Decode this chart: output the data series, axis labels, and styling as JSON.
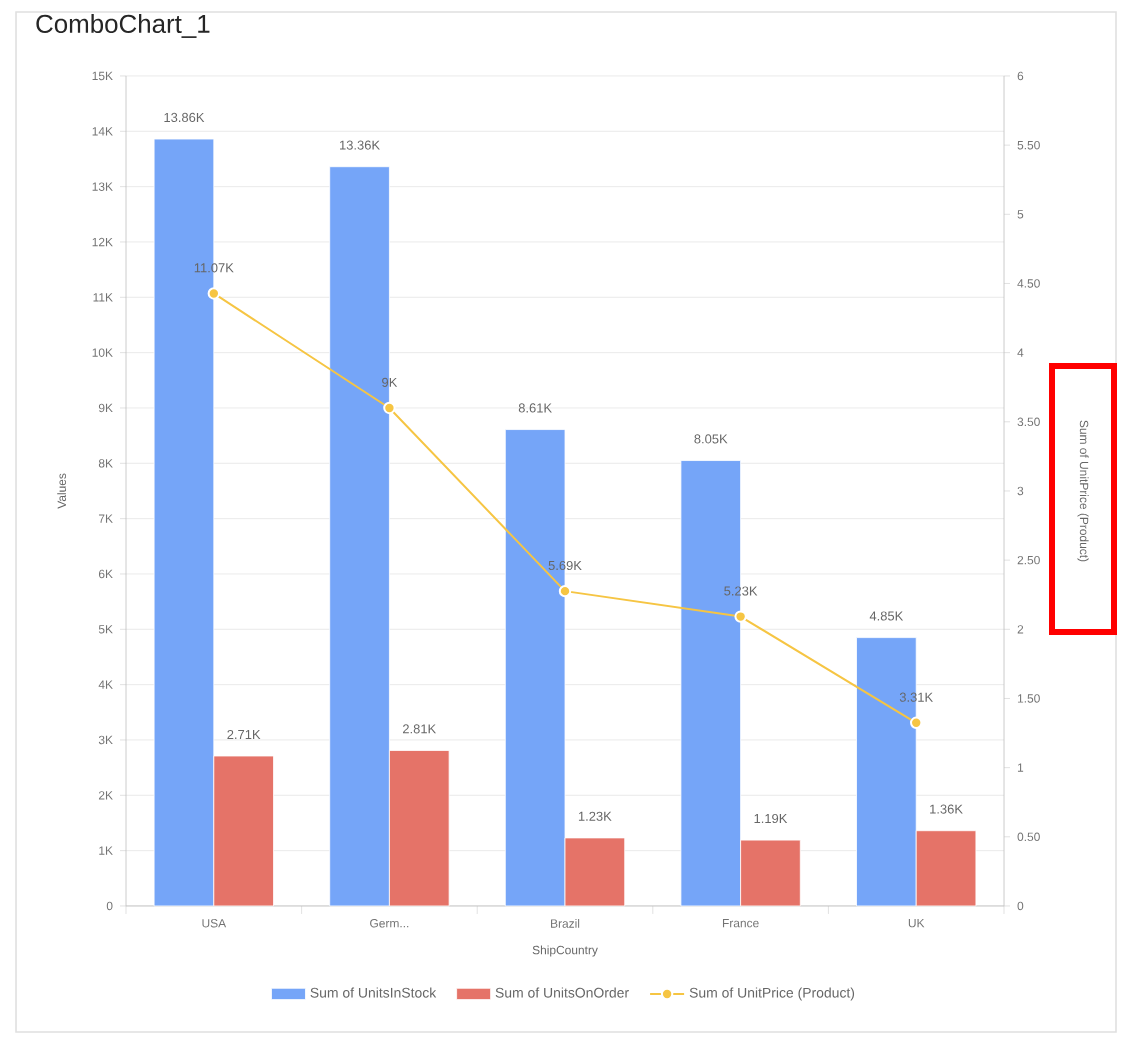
{
  "chart_data": {
    "type": "bar",
    "title": "ComboChart_1",
    "xlabel": "ShipCountry",
    "ylabel": "Values",
    "y2label": "Sum of UnitPrice (Product)",
    "categories": [
      "USA",
      "Germ...",
      "Brazil",
      "France",
      "UK"
    ],
    "series": [
      {
        "name": "Sum of UnitsInStock",
        "color": "#75a5f8",
        "values": [
          13860,
          13360,
          8610,
          8050,
          4850
        ],
        "value_labels": [
          "13.86K",
          "13.36K",
          "8.61K",
          "8.05K",
          "4.85K"
        ]
      },
      {
        "name": "Sum of UnitsOnOrder",
        "color": "#e57368",
        "values": [
          2710,
          2810,
          1230,
          1190,
          1360
        ],
        "value_labels": [
          "2.71K",
          "2.81K",
          "1.23K",
          "1.19K",
          "1.36K"
        ]
      },
      {
        "name": "Sum of UnitPrice (Product)",
        "type": "line",
        "marker": "circle",
        "color": "#f6c543",
        "values": [
          11070,
          9000,
          5690,
          5230,
          3310
        ],
        "value_labels": [
          "11.07K",
          "9K",
          "5.69K",
          "5.23K",
          "3.31K"
        ]
      }
    ],
    "ylim": [
      0,
      15000
    ],
    "yticks": [
      0,
      {
        "value": 1000,
        "label": "1K"
      },
      {
        "value": 2000,
        "label": "2K"
      },
      {
        "value": 3000,
        "label": "3K"
      },
      {
        "value": 4000,
        "label": "4K"
      },
      {
        "value": 5000,
        "label": "5K"
      },
      {
        "value": 6000,
        "label": "6K"
      },
      {
        "value": 7000,
        "label": "7K"
      },
      {
        "value": 8000,
        "label": "8K"
      },
      {
        "value": 9000,
        "label": "9K"
      },
      {
        "value": 10000,
        "label": "10K"
      },
      {
        "value": 11000,
        "label": "11K"
      },
      {
        "value": 12000,
        "label": "12K"
      },
      {
        "value": 13000,
        "label": "13K"
      },
      {
        "value": 14000,
        "label": "14K"
      },
      {
        "value": 15000,
        "label": "15K"
      }
    ],
    "y2lim": [
      0,
      6
    ],
    "y2ticks": [
      0,
      {
        "value": 0.5,
        "label": "0.50"
      },
      1,
      {
        "value": 1.5,
        "label": "1.50"
      },
      2,
      {
        "value": 2.5,
        "label": "2.50"
      },
      3,
      {
        "value": 3.5,
        "label": "3.50"
      },
      4,
      {
        "value": 4.5,
        "label": "4.50"
      },
      5,
      {
        "value": 5.5,
        "label": "5.50"
      },
      6
    ],
    "grid": "y",
    "legend": "bottom"
  }
}
